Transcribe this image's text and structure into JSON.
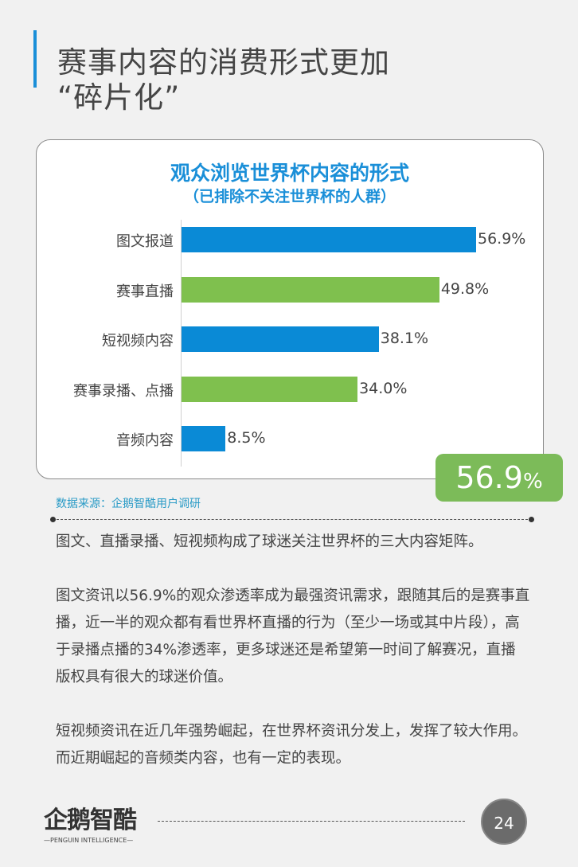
{
  "heading": {
    "line1": "赛事内容的消费形式更加",
    "line2": "“碎片化”"
  },
  "chart_data": {
    "type": "bar",
    "orientation": "horizontal",
    "title": "观众浏览世界杯内容的形式",
    "subtitle": "（已排除不关注世界杯的人群）",
    "categories": [
      "图文报道",
      "赛事直播",
      "短视频内容",
      "赛事录播、点播",
      "音频内容"
    ],
    "values": [
      56.9,
      49.8,
      38.1,
      34.0,
      8.5
    ],
    "labels": [
      "56.9%",
      "49.8%",
      "38.1%",
      "34.0%",
      "8.5%"
    ],
    "colors": [
      "#0a8ad6",
      "#7fc04e",
      "#0a8ad6",
      "#7fc04e",
      "#0a8ad6"
    ],
    "xlim": [
      0,
      56.9
    ],
    "grid": false
  },
  "highlight": {
    "value": "56.9",
    "unit": "%",
    "color": "#7cbb59"
  },
  "source": "数据来源：企鹅智酷用户调研",
  "paragraphs": [
    "图文、直播录播、短视频构成了球迷关注世界杯的三大内容矩阵。",
    "图文资讯以56.9%的观众渗透率成为最强资讯需求，跟随其后的是赛事直播，近一半的观众都有看世界杯直播的行为（至少一场或其中片段），高于录播点播的34%渗透率，更多球迷还是希望第一时间了解赛况，直播版权具有很大的球迷价值。",
    "短视频资讯在近几年强势崛起，在世界杯资讯分发上，发挥了较大作用。而近期崛起的音频类内容，也有一定的表现。"
  ],
  "footer": {
    "logo_cn": "企鹅智酷",
    "logo_en": "—PENGUIN INTELLIGENCE—",
    "page": "24"
  }
}
